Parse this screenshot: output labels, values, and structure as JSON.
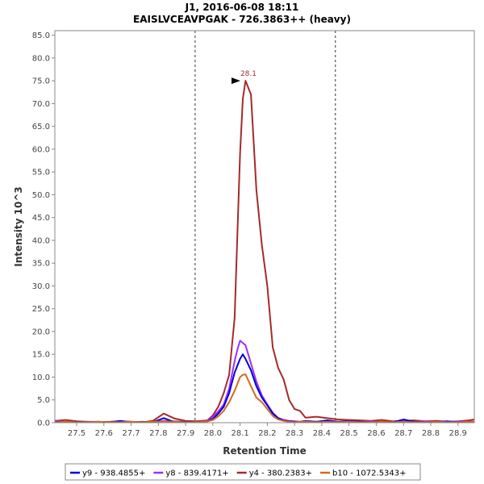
{
  "chart_data": {
    "type": "line",
    "title": "J1, 2016-06-08 18:11",
    "subtitle": "EAISLVCEAVPGAK - 726.3863++ (heavy)",
    "xlabel": "Retention Time",
    "ylabel": "Intensity 10^3",
    "xlim": [
      27.42,
      28.96
    ],
    "ylim": [
      0,
      86
    ],
    "x_ticks": [
      27.5,
      27.6,
      27.7,
      27.8,
      27.9,
      28.0,
      28.1,
      28.2,
      28.3,
      28.4,
      28.5,
      28.6,
      28.7,
      28.8,
      28.9
    ],
    "x_tick_labels": [
      "27.5",
      "27.6",
      "27.7",
      "27.8",
      "27.9",
      "28.0",
      "28.1",
      "28.2",
      "28.3",
      "28.4",
      "28.5",
      "28.6",
      "28.7",
      "28.8",
      "28.9"
    ],
    "y_ticks": [
      0,
      5,
      10,
      15,
      20,
      25,
      30,
      35,
      40,
      45,
      50,
      55,
      60,
      65,
      70,
      75,
      80,
      85
    ],
    "y_tick_labels": [
      "0.0",
      "5.0",
      "10.0",
      "15.0",
      "20.0",
      "25.0",
      "30.0",
      "35.0",
      "40.0",
      "45.0",
      "50.0",
      "55.0",
      "60.0",
      "65.0",
      "70.0",
      "75.0",
      "80.0",
      "85.0"
    ],
    "integration_bounds": [
      27.935,
      28.45
    ],
    "peak_annotation": {
      "label": "28.1",
      "x": 28.11,
      "y": 75,
      "color": "#a52a2a"
    },
    "x": [
      27.42,
      27.46,
      27.5,
      27.54,
      27.58,
      27.62,
      27.66,
      27.7,
      27.74,
      27.78,
      27.82,
      27.86,
      27.9,
      27.94,
      27.98,
      28.0,
      28.02,
      28.04,
      28.06,
      28.08,
      28.09,
      28.1,
      28.11,
      28.12,
      28.14,
      28.16,
      28.18,
      28.2,
      28.22,
      28.24,
      28.26,
      28.28,
      28.3,
      28.32,
      28.34,
      28.38,
      28.42,
      28.46,
      28.5,
      28.54,
      28.58,
      28.62,
      28.66,
      28.7,
      28.74,
      28.78,
      28.82,
      28.86,
      28.9,
      28.94,
      28.96
    ],
    "series": [
      {
        "name": "y9 - 938.4855+",
        "color": "#0000dd",
        "values": [
          0.2,
          0.1,
          0.2,
          0.1,
          0.2,
          0.1,
          0.4,
          0.1,
          0.2,
          0.1,
          1.0,
          0.1,
          0.2,
          0.1,
          0.3,
          0.8,
          2.0,
          3.5,
          6.5,
          11.0,
          12.5,
          14.0,
          15.0,
          14.0,
          11.5,
          8.0,
          5.5,
          3.8,
          2.0,
          1.0,
          0.5,
          0.3,
          0.2,
          0.2,
          0.3,
          0.2,
          0.5,
          0.2,
          0.3,
          0.2,
          0.1,
          0.2,
          0.1,
          0.7,
          0.2,
          0.1,
          0.2,
          0.3,
          0.1,
          0.2,
          0.2
        ]
      },
      {
        "name": "y8 - 839.4171+",
        "color": "#9b30ff",
        "values": [
          0.3,
          0.2,
          0.1,
          0.2,
          0.2,
          0.1,
          0.3,
          0.2,
          0.1,
          0.2,
          0.4,
          0.3,
          0.2,
          0.1,
          0.4,
          1.3,
          2.5,
          4.0,
          7.5,
          13.5,
          16.0,
          18.0,
          17.5,
          17.0,
          13.0,
          9.0,
          6.0,
          4.0,
          2.2,
          1.0,
          0.6,
          0.4,
          0.3,
          0.2,
          0.4,
          0.2,
          0.3,
          0.2,
          0.4,
          0.2,
          0.3,
          0.1,
          0.2,
          0.4,
          0.2,
          0.3,
          0.2,
          0.1,
          0.3,
          0.2,
          0.2
        ]
      },
      {
        "name": "y4 - 380.2383+",
        "color": "#a52a2a",
        "values": [
          0.4,
          0.6,
          0.3,
          0.2,
          0.1,
          0.2,
          0.3,
          0.2,
          0.1,
          0.4,
          2.0,
          0.9,
          0.4,
          0.3,
          0.5,
          1.6,
          3.5,
          6.5,
          10.5,
          23.0,
          41.0,
          59.0,
          71.0,
          75.0,
          72.0,
          51.0,
          39.0,
          30.0,
          16.5,
          12.0,
          9.5,
          5.0,
          3.0,
          2.6,
          1.1,
          1.3,
          1.0,
          0.7,
          0.6,
          0.5,
          0.4,
          0.6,
          0.3,
          0.4,
          0.5,
          0.3,
          0.4,
          0.2,
          0.3,
          0.5,
          0.7
        ]
      },
      {
        "name": "b10 - 1072.5343+",
        "color": "#d2691e",
        "values": [
          0.1,
          0.2,
          0.1,
          0.1,
          0.2,
          0.1,
          0.1,
          0.2,
          0.1,
          0.2,
          0.3,
          0.2,
          0.1,
          0.1,
          0.3,
          0.6,
          1.4,
          2.6,
          4.5,
          7.0,
          8.5,
          10.0,
          10.5,
          10.6,
          8.0,
          5.5,
          4.5,
          3.0,
          1.5,
          0.7,
          0.4,
          0.2,
          0.1,
          0.2,
          0.2,
          0.1,
          0.2,
          0.1,
          0.2,
          0.1,
          0.1,
          0.2,
          0.1,
          0.2,
          0.1,
          0.1,
          0.2,
          0.1,
          0.1,
          0.2,
          0.2
        ]
      }
    ]
  }
}
